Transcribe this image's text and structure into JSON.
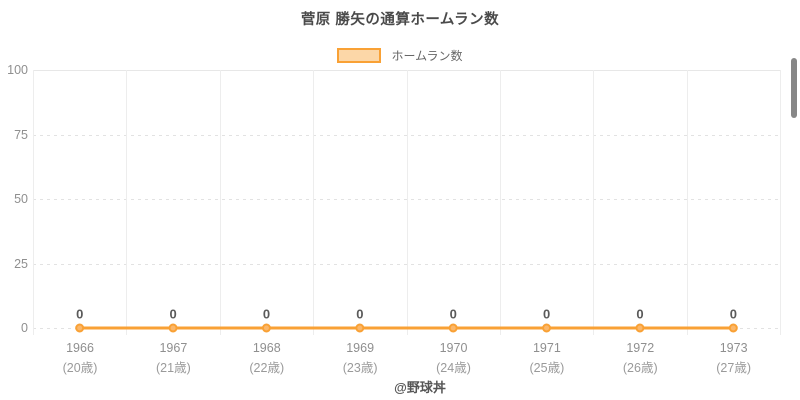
{
  "title": "菅原 勝矢の通算ホームラン数",
  "legend": {
    "label": "ホームラン数"
  },
  "footer": "@野球丼",
  "colors": {
    "line": "#f9a135",
    "marker_fill": "#fbb76a",
    "legend_fill": "#fcd7a8",
    "title_text": "#4a4a4a",
    "axis_text": "#8f8f8f",
    "point_label_text": "#5a5a5a",
    "footer_text": "#555555"
  },
  "chart_data": {
    "type": "line",
    "title": "菅原 勝矢の通算ホームラン数",
    "categories": [
      {
        "year": "1966",
        "age": "(20歳)"
      },
      {
        "year": "1967",
        "age": "(21歳)"
      },
      {
        "year": "1968",
        "age": "(22歳)"
      },
      {
        "year": "1969",
        "age": "(23歳)"
      },
      {
        "year": "1970",
        "age": "(24歳)"
      },
      {
        "year": "1971",
        "age": "(25歳)"
      },
      {
        "year": "1972",
        "age": "(26歳)"
      },
      {
        "year": "1973",
        "age": "(27歳)"
      }
    ],
    "series": [
      {
        "name": "ホームラン数",
        "values": [
          0,
          0,
          0,
          0,
          0,
          0,
          0,
          0
        ]
      }
    ],
    "point_labels": [
      "0",
      "0",
      "0",
      "0",
      "0",
      "0",
      "0",
      "0"
    ],
    "ylabel": "",
    "xlabel": "",
    "ylim": [
      0,
      100
    ],
    "yticks": [
      0,
      25,
      50,
      75,
      100
    ],
    "grid": true,
    "legend_position": "top",
    "annotation": "@野球丼"
  }
}
